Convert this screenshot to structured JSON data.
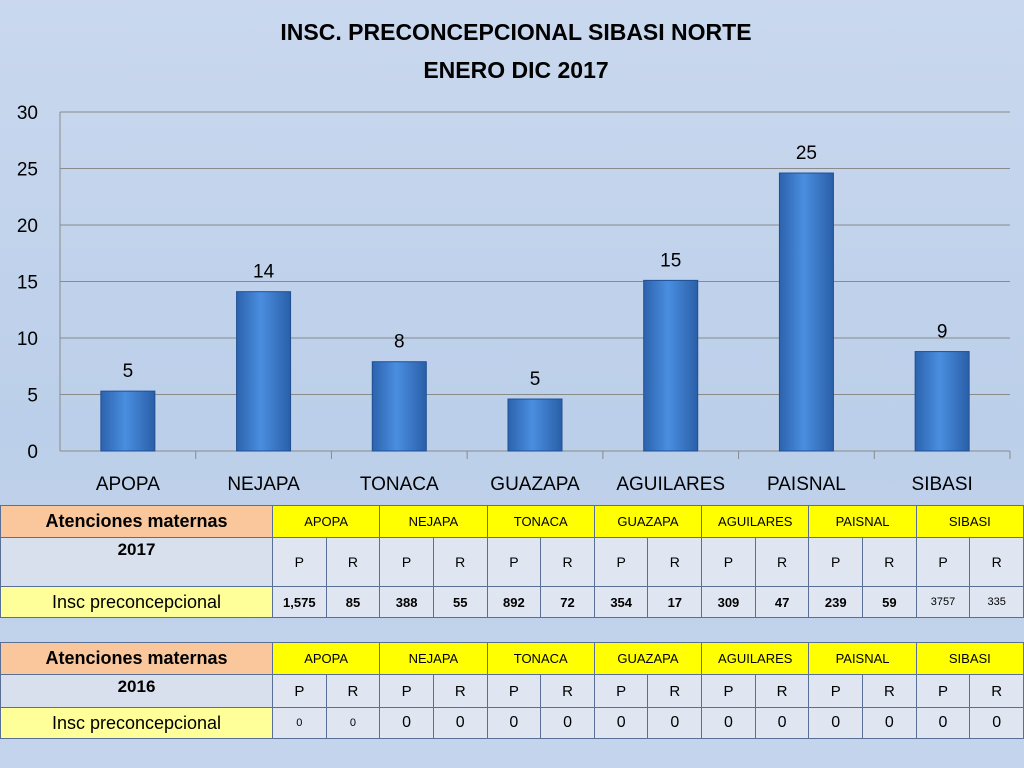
{
  "chart_data": {
    "type": "bar",
    "title": "INSC. PRECONCEPCIONAL SIBASI NORTE",
    "subtitle": "ENERO DIC 2017",
    "categories": [
      "APOPA",
      "NEJAPA",
      "TONACA",
      "GUAZAPA",
      "AGUILARES",
      "PAISNAL",
      "SIBASI"
    ],
    "series": [
      {
        "values": [
          5.3,
          14.1,
          7.9,
          4.6,
          15.1,
          24.6,
          8.8
        ]
      }
    ],
    "data_labels": [
      "5",
      "14",
      "8",
      "5",
      "15",
      "25",
      "9"
    ],
    "ylim": [
      0,
      30
    ],
    "yticks": [
      0,
      5,
      10,
      15,
      20,
      25,
      30
    ],
    "grid": true,
    "legend": "none",
    "bar_color": "#3f7fd0"
  },
  "tables": [
    {
      "header_label": "Atenciones maternas",
      "year_label": "2017",
      "sites": [
        "APOPA",
        "NEJAPA",
        "TONACA",
        "GUAZAPA",
        "AGUILARES",
        "PAISNAL",
        "SIBASI"
      ],
      "pr": [
        "P",
        "R",
        "P",
        "R",
        "P",
        "R",
        "P",
        "R",
        "P",
        "R",
        "P",
        "R",
        "P",
        "R"
      ],
      "row_label": "Insc preconcepcional",
      "values": [
        "1,575",
        "85",
        "388",
        "55",
        "892",
        "72",
        "354",
        "17",
        "309",
        "47",
        "239",
        "59",
        "3757",
        "335"
      ]
    },
    {
      "header_label": "Atenciones maternas",
      "year_label": "2016",
      "sites": [
        "APOPA",
        "NEJAPA",
        "TONACA",
        "GUAZAPA",
        "AGUILARES",
        "PAISNAL",
        "SIBASI"
      ],
      "pr": [
        "P",
        "R",
        "P",
        "R",
        "P",
        "R",
        "P",
        "R",
        "P",
        "R",
        "P",
        "R",
        "P",
        "R"
      ],
      "row_label": "Insc preconcepcional",
      "values": [
        "0",
        "0",
        "0",
        "0",
        "0",
        "0",
        "0",
        "0",
        "0",
        "0",
        "0",
        "0",
        "0",
        "0"
      ]
    }
  ]
}
